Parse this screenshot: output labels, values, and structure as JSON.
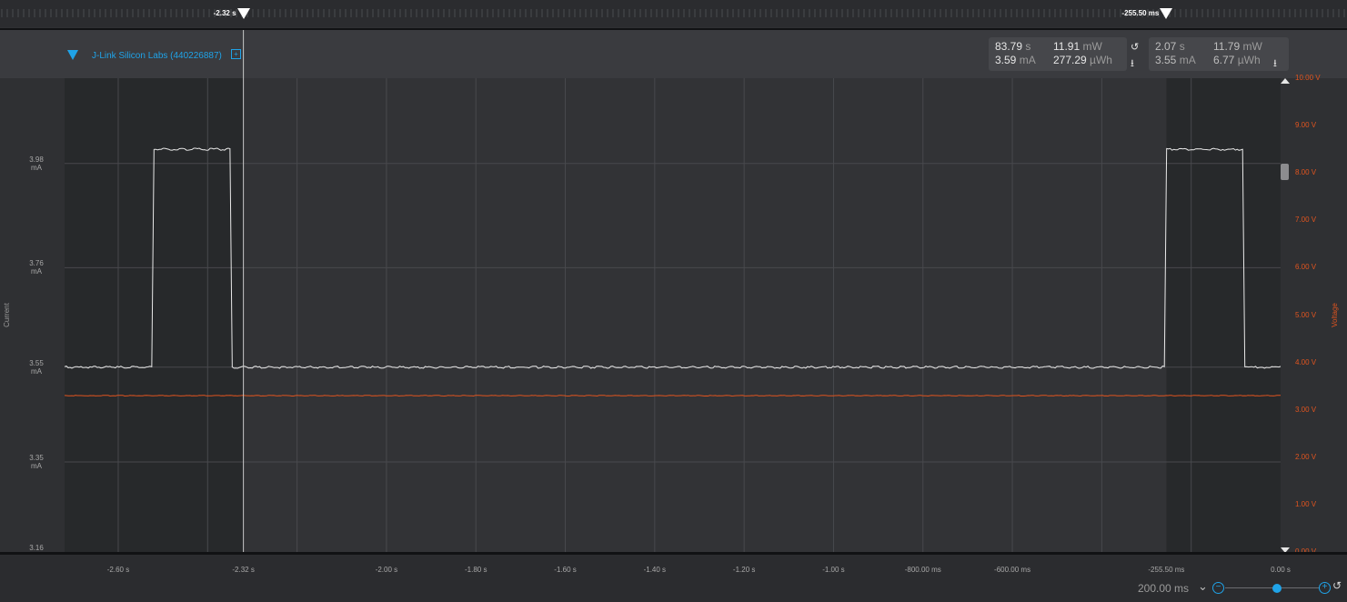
{
  "markers": [
    {
      "label": "-2.32 s",
      "t": -2.32
    },
    {
      "label": "-255.50 ms",
      "t": -0.2555
    }
  ],
  "device": {
    "name": "J-Link Silicon Labs (440226887)",
    "expand_icon": "plus-box-icon"
  },
  "stats_global": {
    "time": "83.79",
    "time_unit": "s",
    "power": "11.91",
    "power_unit": "mW",
    "current": "3.59",
    "current_unit": "mA",
    "energy": "277.29",
    "energy_unit": "µWh",
    "reset_icon": "reset-icon",
    "export_icon": "export-icon"
  },
  "stats_selection": {
    "time": "2.07",
    "time_unit": "s",
    "power": "11.79",
    "power_unit": "mW",
    "current": "3.55",
    "current_unit": "mA",
    "energy": "6.77",
    "energy_unit": "µWh",
    "export_icon": "export-icon"
  },
  "zoom": {
    "label": "200.00 ms",
    "chevron": "chevron-down-icon",
    "minus": "zoom-out-icon",
    "plus": "zoom-in-icon",
    "reset": "reset-icon",
    "level": 0.55
  },
  "colors": {
    "current": "#e8e8e8",
    "voltage": "#e0541f",
    "accent": "#1fa3e8",
    "selection": "#3a3b3f",
    "plot": "#323336"
  },
  "chart_data": {
    "type": "line",
    "ylabel": "Current",
    "y2label": "Voltage",
    "xlim": [
      -2.72,
      0.0
    ],
    "ylim": [
      3.16,
      4.16
    ],
    "y2lim": [
      0,
      10
    ],
    "y_ticks": [
      {
        "value": 3.98,
        "label": "3.98",
        "unit": "mA"
      },
      {
        "value": 3.76,
        "label": "3.76",
        "unit": "mA"
      },
      {
        "value": 3.55,
        "label": "3.55",
        "unit": "mA"
      },
      {
        "value": 3.35,
        "label": "3.35",
        "unit": "mA"
      },
      {
        "value": 3.16,
        "label": "3.16",
        "unit": ""
      }
    ],
    "y2_ticks": [
      {
        "value": 10,
        "label": "10.00 V"
      },
      {
        "value": 9,
        "label": "9.00 V"
      },
      {
        "value": 8,
        "label": "8.00 V"
      },
      {
        "value": 7,
        "label": "7.00 V"
      },
      {
        "value": 6,
        "label": "6.00 V"
      },
      {
        "value": 5,
        "label": "5.00 V"
      },
      {
        "value": 4,
        "label": "4.00 V"
      },
      {
        "value": 3,
        "label": "3.00 V"
      },
      {
        "value": 2,
        "label": "2.00 V"
      },
      {
        "value": 1,
        "label": "1.00 V"
      },
      {
        "value": 0,
        "label": "0.00 V"
      }
    ],
    "x_ticks": [
      {
        "value": -2.6,
        "label": "-2.60 s"
      },
      {
        "value": -2.32,
        "label": "-2.32 s"
      },
      {
        "value": -2.0,
        "label": "-2.00 s"
      },
      {
        "value": -1.8,
        "label": "-1.80 s"
      },
      {
        "value": -1.6,
        "label": "-1.60 s"
      },
      {
        "value": -1.4,
        "label": "-1.40 s"
      },
      {
        "value": -1.2,
        "label": "-1.20 s"
      },
      {
        "value": -1.0,
        "label": "-1.00 s"
      },
      {
        "value": -0.8,
        "label": "-800.00 ms"
      },
      {
        "value": -0.6,
        "label": "-600.00 ms"
      },
      {
        "value": -0.2555,
        "label": "-255.50 ms"
      },
      {
        "value": 0.0,
        "label": "0.00 s"
      }
    ],
    "grid_x": [
      -2.6,
      -2.4,
      -2.2,
      -2.0,
      -1.8,
      -1.6,
      -1.4,
      -1.2,
      -1.0,
      -0.8,
      -0.6,
      -0.4,
      -0.2
    ],
    "grid_y": [
      3.98,
      3.76,
      3.55,
      3.35
    ],
    "series": [
      {
        "axis": "left",
        "points": [
          [
            -2.72,
            3.55
          ],
          [
            -2.525,
            3.55
          ],
          [
            -2.52,
            4.01
          ],
          [
            -2.35,
            4.01
          ],
          [
            -2.345,
            3.55
          ],
          [
            -0.26,
            3.55
          ],
          [
            -0.255,
            4.01
          ],
          [
            -0.085,
            4.01
          ],
          [
            -0.08,
            3.55
          ],
          [
            0.0,
            3.55
          ]
        ]
      },
      {
        "axis": "right",
        "points": [
          [
            -2.72,
            3.3
          ],
          [
            0.0,
            3.3
          ]
        ]
      }
    ]
  }
}
